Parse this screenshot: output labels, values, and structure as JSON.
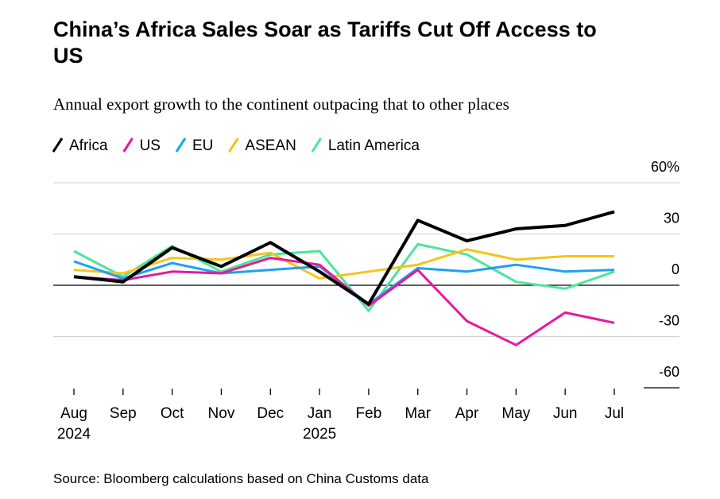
{
  "chart_data": {
    "type": "line",
    "title": "China’s Africa Sales Soar as Tariffs Cut Off Access to US",
    "subtitle": "Annual export growth to the continent outpacing that to other places",
    "source": "Source: Bloomberg calculations based on China Customs data",
    "categories": [
      "Aug 2024",
      "Sep",
      "Oct",
      "Nov",
      "Dec",
      "Jan 2025",
      "Feb",
      "Mar",
      "Apr",
      "May",
      "Jun",
      "Jul"
    ],
    "series": [
      {
        "name": "Africa",
        "color": "#000000",
        "values": [
          5,
          2,
          22,
          11,
          25,
          8,
          -11,
          38,
          26,
          33,
          35,
          43
        ]
      },
      {
        "name": "US",
        "color": "#e6199b",
        "values": [
          5,
          3,
          8,
          7,
          16,
          12,
          -12,
          9,
          -21,
          -35,
          -16,
          -22
        ]
      },
      {
        "name": "EU",
        "color": "#1da1f2",
        "values": [
          14,
          4,
          13,
          7,
          9,
          11,
          -11,
          10,
          8,
          12,
          8,
          9
        ]
      },
      {
        "name": "ASEAN",
        "color": "#f5c518",
        "values": [
          9,
          7,
          16,
          15,
          19,
          4,
          8,
          12,
          21,
          15,
          17,
          17
        ]
      },
      {
        "name": "Latin America",
        "color": "#4de59a",
        "values": [
          20,
          5,
          23,
          8,
          18,
          20,
          -15,
          24,
          18,
          2,
          -2,
          8
        ]
      }
    ],
    "ylim": [
      -60,
      60
    ],
    "yticks": [
      -60,
      -30,
      0,
      30,
      {
        "value": 60,
        "label": "60%"
      }
    ],
    "grid": true
  }
}
